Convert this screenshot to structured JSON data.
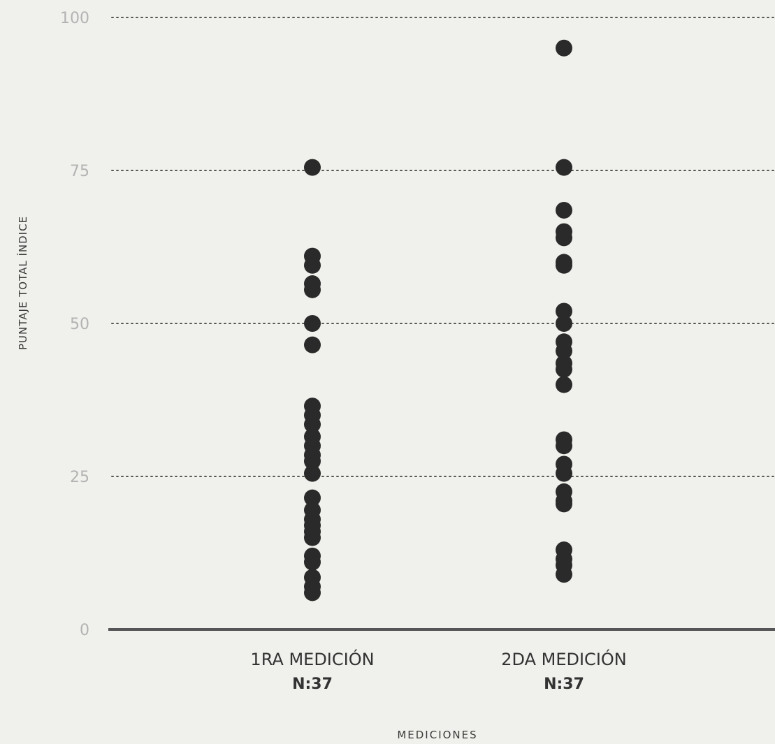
{
  "chart_data": {
    "type": "scatter",
    "title": "",
    "xlabel": "MEDICIONES",
    "ylabel": "PUNTAJE TOTAL ÍNDICE",
    "ylim": [
      0,
      100
    ],
    "yticks": [
      0,
      25,
      50,
      75,
      100
    ],
    "grid": true,
    "colors": {
      "background": "#f0f0ec",
      "point": "#2a2a2a",
      "grid": "#555555",
      "baseline": "#555555",
      "tick_text": "#b3b3b3",
      "label_text": "#333333"
    },
    "categories": [
      {
        "label": "1RA  MEDICIÓN",
        "n_label": "N:37"
      },
      {
        "label": "2DA  MEDICIÓN",
        "n_label": "N:37"
      }
    ],
    "series": [
      {
        "values": [
          75.5,
          61,
          59.5,
          56.5,
          55.5,
          50,
          46.5,
          36.5,
          35,
          33.5,
          31.5,
          30,
          28.5,
          27.5,
          25.5,
          21.5,
          19.5,
          18,
          17,
          16,
          15,
          12,
          11,
          8.5,
          7,
          6
        ]
      },
      {
        "values": [
          95,
          75.5,
          68.5,
          65,
          64,
          60,
          59.5,
          52,
          50,
          47,
          45.5,
          43.5,
          42.5,
          40,
          31,
          30,
          27,
          25.5,
          22.5,
          21,
          20.5,
          13,
          11.5,
          10.5,
          9
        ]
      }
    ]
  }
}
